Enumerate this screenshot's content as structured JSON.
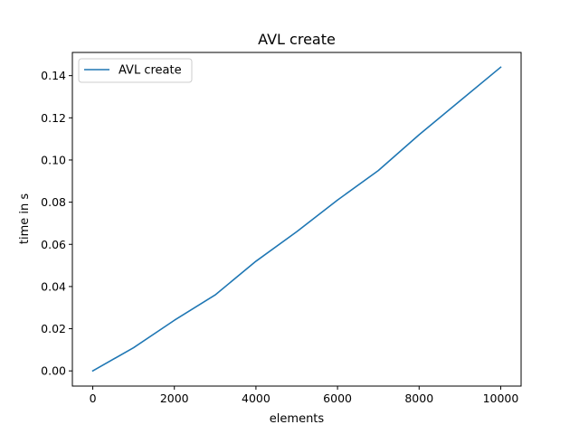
{
  "chart_data": {
    "type": "line",
    "title": "AVL create",
    "xlabel": "elements",
    "ylabel": "time in s",
    "xlim": [
      -500,
      10500
    ],
    "ylim": [
      -0.0072,
      0.151
    ],
    "xticks": [
      0,
      2000,
      4000,
      6000,
      8000,
      10000
    ],
    "xtick_labels": [
      "0",
      "2000",
      "4000",
      "6000",
      "8000",
      "10000"
    ],
    "yticks": [
      0.0,
      0.02,
      0.04,
      0.06,
      0.08,
      0.1,
      0.12,
      0.14
    ],
    "ytick_labels": [
      "0.00",
      "0.02",
      "0.04",
      "0.06",
      "0.08",
      "0.10",
      "0.12",
      "0.14"
    ],
    "grid": false,
    "legend_position": "top-left",
    "series": [
      {
        "name": "AVL create",
        "color": "#1f77b4",
        "x": [
          0,
          1000,
          2000,
          3000,
          4000,
          5000,
          6000,
          7000,
          8000,
          9000,
          10000
        ],
        "y": [
          0.0,
          0.011,
          0.024,
          0.036,
          0.052,
          0.066,
          0.081,
          0.095,
          0.112,
          0.128,
          0.144
        ]
      }
    ]
  }
}
